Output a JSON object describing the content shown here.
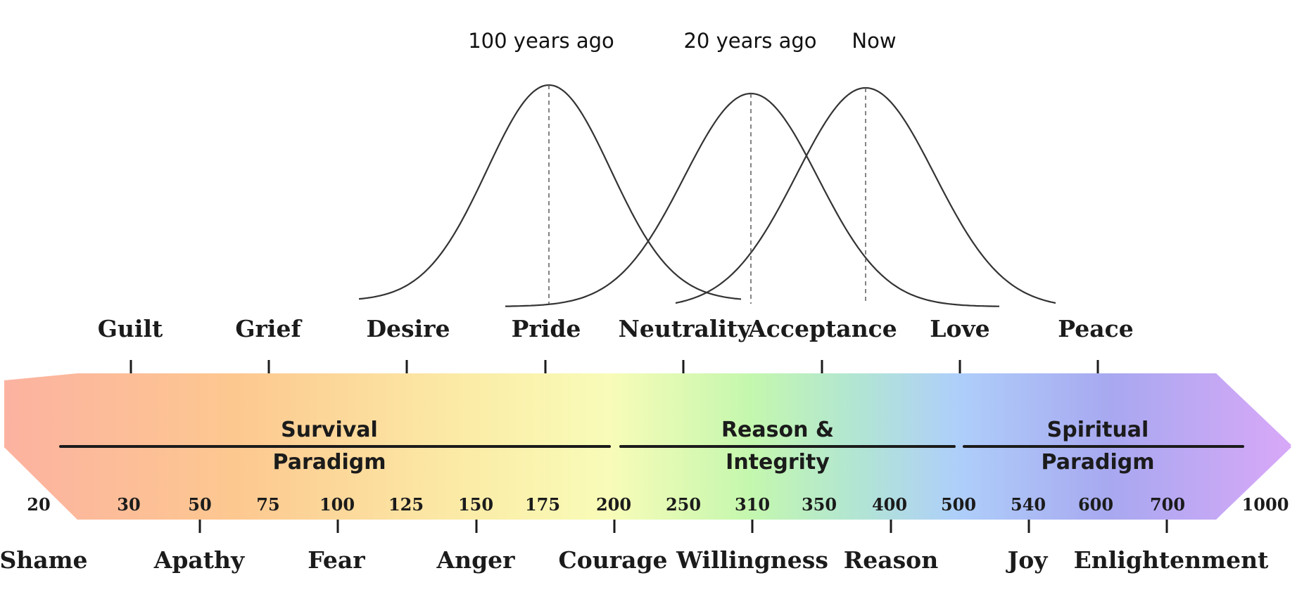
{
  "curves": [
    {
      "label": "100 years ago",
      "peak": 175
    },
    {
      "label": "20 years ago",
      "peak": 310
    },
    {
      "label": "Now",
      "peak": 377
    }
  ],
  "top_levels": [
    {
      "label": "Guilt",
      "value": 30
    },
    {
      "label": "Grief",
      "value": 75
    },
    {
      "label": "Desire",
      "value": 125
    },
    {
      "label": "Pride",
      "value": 175
    },
    {
      "label": "Neutrality",
      "value": 250
    },
    {
      "label": "Acceptance",
      "value": 350
    },
    {
      "label": "Love",
      "value": 500
    },
    {
      "label": "Peace",
      "value": 600
    }
  ],
  "bottom_levels": [
    {
      "label": "Shame",
      "value": 20
    },
    {
      "label": "Apathy",
      "value": 50
    },
    {
      "label": "Fear",
      "value": 100
    },
    {
      "label": "Anger",
      "value": 150
    },
    {
      "label": "Courage",
      "value": 200
    },
    {
      "label": "Willingness",
      "value": 310
    },
    {
      "label": "Reason",
      "value": 400
    },
    {
      "label": "Joy",
      "value": 540
    },
    {
      "label": "Enlightenment",
      "value": 700
    }
  ],
  "scale_numbers": [
    "20",
    "30",
    "50",
    "75",
    "100",
    "125",
    "150",
    "175",
    "200",
    "250",
    "310",
    "350",
    "400",
    "500",
    "540",
    "600",
    "700",
    "1000"
  ],
  "paradigms": [
    {
      "line1": "Survival",
      "line2": "Paradigm"
    },
    {
      "line1": "Reason &",
      "line2": "Integrity"
    },
    {
      "line1": "Spiritual",
      "line2": "Paradigm"
    }
  ],
  "colors": {
    "gradient": [
      "#fcb2a0",
      "#fdc890",
      "#fbeca7",
      "#f8fcb8",
      "#c4f7ae",
      "#b2e6d2",
      "#aecffa",
      "#a8a8f0",
      "#d8a8f8"
    ]
  }
}
